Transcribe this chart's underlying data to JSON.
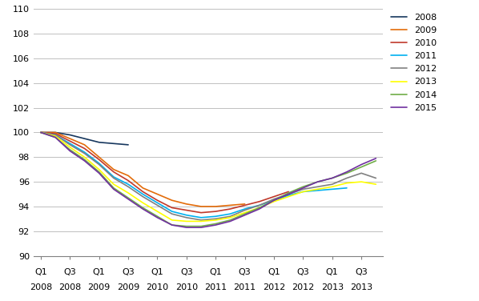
{
  "ylim": [
    90,
    110
  ],
  "yticks": [
    90,
    92,
    94,
    96,
    98,
    100,
    102,
    104,
    106,
    108,
    110
  ],
  "series": {
    "2008": {
      "color": "#17375e",
      "data": [
        100.0,
        100.0,
        99.8,
        99.5,
        99.2,
        99.1,
        99.0,
        null,
        null,
        null,
        null,
        null,
        null,
        null,
        null,
        null,
        null,
        null,
        null,
        null,
        null,
        null,
        null,
        null
      ]
    },
    "2009": {
      "color": "#e36c0a",
      "data": [
        100.0,
        100.0,
        99.5,
        99.0,
        98.0,
        97.0,
        96.5,
        95.5,
        95.0,
        94.5,
        94.2,
        94.0,
        94.0,
        94.1,
        94.2,
        null,
        null,
        null,
        null,
        null,
        null,
        null,
        null,
        null
      ]
    },
    "2010": {
      "color": "#c0392b",
      "data": [
        100.0,
        99.9,
        99.3,
        98.7,
        97.8,
        96.8,
        96.1,
        95.2,
        94.5,
        93.9,
        93.7,
        93.5,
        93.6,
        93.8,
        94.1,
        94.4,
        94.8,
        95.2,
        null,
        null,
        null,
        null,
        null,
        null
      ]
    },
    "2011": {
      "color": "#00b0f0",
      "data": [
        100.0,
        99.8,
        99.1,
        98.4,
        97.5,
        96.4,
        95.8,
        95.0,
        94.3,
        93.6,
        93.3,
        93.1,
        93.2,
        93.4,
        93.8,
        94.1,
        94.5,
        94.9,
        95.2,
        95.3,
        95.4,
        95.5,
        null,
        null
      ]
    },
    "2012": {
      "color": "#808080",
      "data": [
        100.0,
        99.8,
        99.0,
        98.3,
        97.4,
        96.3,
        95.6,
        94.8,
        94.1,
        93.4,
        93.1,
        92.9,
        93.0,
        93.2,
        93.7,
        94.1,
        94.6,
        95.0,
        95.4,
        95.6,
        95.8,
        96.3,
        96.7,
        96.3
      ]
    },
    "2013": {
      "color": "#ffff00",
      "data": [
        100.0,
        99.7,
        98.8,
        98.0,
        97.0,
        95.8,
        95.1,
        94.3,
        93.6,
        92.9,
        92.8,
        92.8,
        92.9,
        93.1,
        93.5,
        93.9,
        94.4,
        94.8,
        95.2,
        95.4,
        95.6,
        95.9,
        96.0,
        95.8
      ]
    },
    "2014": {
      "color": "#70ad47",
      "data": [
        100.0,
        99.6,
        98.6,
        97.8,
        96.8,
        95.5,
        94.7,
        93.9,
        93.2,
        92.5,
        92.4,
        92.4,
        92.6,
        92.9,
        93.4,
        93.9,
        94.5,
        95.1,
        95.6,
        96.0,
        96.3,
        96.7,
        97.2,
        97.7
      ]
    },
    "2015": {
      "color": "#7030a0",
      "data": [
        100.0,
        99.6,
        98.5,
        97.7,
        96.7,
        95.4,
        94.6,
        93.8,
        93.1,
        92.5,
        92.3,
        92.3,
        92.5,
        92.8,
        93.3,
        93.8,
        94.5,
        95.0,
        95.5,
        96.0,
        96.3,
        96.8,
        97.4,
        97.9
      ]
    }
  },
  "tick_labels_top": [
    "Q1",
    "Q3",
    "Q1",
    "Q3",
    "Q1",
    "Q3",
    "Q1",
    "Q3",
    "Q1",
    "Q3",
    "Q1",
    "Q3"
  ],
  "tick_labels_bottom": [
    "2008",
    "2008",
    "2009",
    "2009",
    "2010",
    "2010",
    "2011",
    "2011",
    "2012",
    "2012",
    "2013",
    "2013"
  ],
  "legend_order": [
    "2008",
    "2009",
    "2010",
    "2011",
    "2012",
    "2013",
    "2014",
    "2015"
  ]
}
